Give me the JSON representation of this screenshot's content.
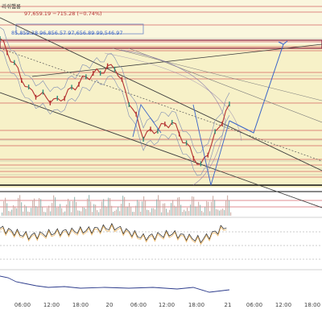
{
  "header": {
    "title_fragment": "리쉬햄롱",
    "ohlc_line": "97,659.19 −715.28 (−0.74%)",
    "bb_line": "85,859.38  96,856.57  97,656.89  99,546.97"
  },
  "time_axis": {
    "labels": [
      "06:00",
      "12:00",
      "18:00",
      "20",
      "06:00",
      "12:00",
      "18:00",
      "21",
      "06:00",
      "12:00",
      "18:00"
    ]
  },
  "colors": {
    "background_fill": "#f7f1c8",
    "horizontal_line": "#c8323c",
    "trend_channel": "#3c3c3c",
    "projection_line": "#3a64c8",
    "price_line": "#b43232",
    "bollinger": "#7d8cb4",
    "volume_up": "#c9a7a0",
    "volume_down": "#8fb3ad",
    "rsi_line": "#222222",
    "rsi_ma": "#e8a33c",
    "panel3_line": "#2d3c8c"
  },
  "chart_data": {
    "type": "line",
    "title": "",
    "xlabel": "",
    "ylabel": "",
    "x": [
      "19 00:00",
      "19 06:00",
      "19 12:00",
      "19 18:00",
      "20 00:00",
      "20 06:00",
      "20 12:00",
      "20 18:00",
      "21 00:00"
    ],
    "series": [
      {
        "values": [
          99500,
          97200,
          96700,
          97800,
          98300,
          95200,
          95800,
          93800,
          96600
        ]
      }
    ],
    "rsi_series": [
      {
        "values": [
          58,
          46,
          52,
          55,
          60,
          44,
          50,
          40,
          64
        ]
      }
    ],
    "grid": true,
    "legend": "none"
  }
}
